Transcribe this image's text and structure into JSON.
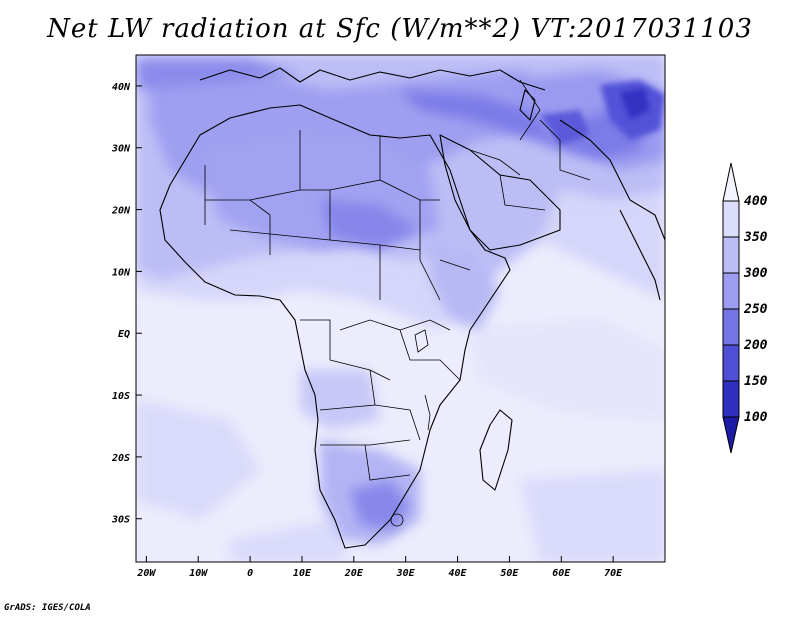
{
  "title": "Net LW radiation at Sfc (W/m**2) VT:2017031103",
  "credit": "GrADS: IGES/COLA",
  "map": {
    "lon_range": [
      -22,
      80
    ],
    "lat_range": [
      -37,
      45
    ],
    "lon_ticks": [
      {
        "value": -20,
        "label": "20W"
      },
      {
        "value": -10,
        "label": "10W"
      },
      {
        "value": 0,
        "label": "0"
      },
      {
        "value": 10,
        "label": "10E"
      },
      {
        "value": 20,
        "label": "20E"
      },
      {
        "value": 30,
        "label": "30E"
      },
      {
        "value": 40,
        "label": "40E"
      },
      {
        "value": 50,
        "label": "50E"
      },
      {
        "value": 60,
        "label": "60E"
      },
      {
        "value": 70,
        "label": "70E"
      }
    ],
    "lat_ticks": [
      {
        "value": 40,
        "label": "40N"
      },
      {
        "value": 30,
        "label": "30N"
      },
      {
        "value": 20,
        "label": "20N"
      },
      {
        "value": 10,
        "label": "10N"
      },
      {
        "value": 0,
        "label": "EQ"
      },
      {
        "value": -10,
        "label": "10S"
      },
      {
        "value": -20,
        "label": "20S"
      },
      {
        "value": -30,
        "label": "30S"
      }
    ]
  },
  "colorbar": {
    "levels": [
      {
        "label": "400",
        "value": 400
      },
      {
        "label": "350",
        "value": 350
      },
      {
        "label": "300",
        "value": 300
      },
      {
        "label": "250",
        "value": 250
      },
      {
        "label": "200",
        "value": 200
      },
      {
        "label": "150",
        "value": 150
      },
      {
        "label": "100",
        "value": 100
      }
    ],
    "colors": {
      "above_400": "#f4f4ff",
      "350_400": "#dcdcfb",
      "300_350": "#bdbdf6",
      "250_300": "#9c9cf0",
      "200_250": "#7575e6",
      "150_200": "#4f4fd6",
      "100_150": "#2f2fc0",
      "below_100": "#1c1ca6"
    }
  }
}
